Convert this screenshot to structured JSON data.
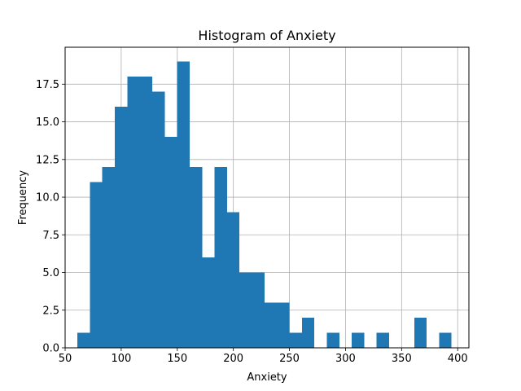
{
  "chart_data": {
    "type": "bar",
    "title": "Histogram of Anxiety",
    "xlabel": "Anxiety",
    "ylabel": "Frequency",
    "xlim": [
      50,
      410
    ],
    "ylim": [
      0,
      19.95
    ],
    "grid": true,
    "color": "#1f77b4",
    "x_ticks": [
      50,
      100,
      150,
      200,
      250,
      300,
      350,
      400
    ],
    "x_tick_labels": [
      "50",
      "100",
      "150",
      "200",
      "250",
      "300",
      "350",
      "400"
    ],
    "y_ticks": [
      0,
      2.5,
      5,
      7.5,
      10,
      12.5,
      15,
      17.5
    ],
    "y_tick_labels": [
      "0.0",
      "2.5",
      "5.0",
      "7.5",
      "10.0",
      "12.5",
      "15.0",
      "17.5"
    ],
    "bin_edges": [
      61.0,
      72.1,
      83.2,
      94.4,
      105.5,
      116.6,
      127.7,
      138.8,
      149.9,
      161.1,
      172.2,
      183.3,
      194.4,
      205.5,
      216.7,
      227.8,
      238.9,
      250.0,
      261.1,
      272.2,
      283.3,
      294.5,
      305.6,
      316.7,
      327.8,
      338.9,
      350.0,
      361.2,
      372.3,
      383.4,
      394.5
    ],
    "values": [
      1,
      11,
      12,
      16,
      18,
      18,
      17,
      14,
      19,
      12,
      6,
      12,
      9,
      5,
      5,
      3,
      3,
      1,
      2,
      0,
      1,
      0,
      1,
      0,
      1,
      0,
      0,
      2,
      0,
      1
    ]
  }
}
